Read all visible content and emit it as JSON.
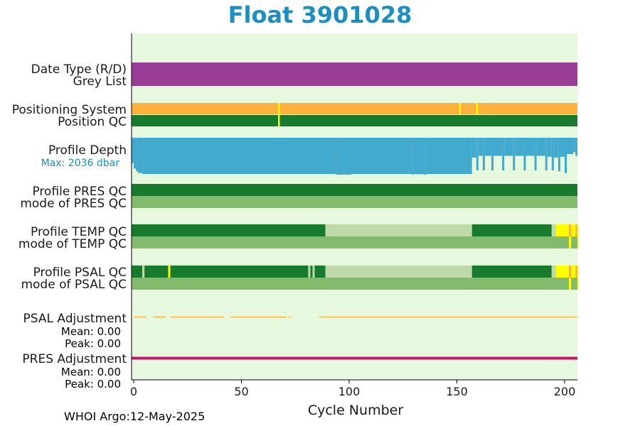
{
  "page": {
    "title": "Float 3901028",
    "footer": "WHOI Argo:12-May-2025"
  },
  "chart_data": {
    "type": "timeline",
    "xlabel": "Cycle Number",
    "xlim": [
      -1,
      207
    ],
    "xticks": [
      0,
      50,
      100,
      150,
      200
    ],
    "background_color": "#e6f9de",
    "rows": [
      {
        "label": "Date Type (R/D)",
        "segments": [
          [
            -1,
            207,
            "#993c96"
          ]
        ]
      },
      {
        "label": "Grey List",
        "segments": []
      },
      {
        "label": "Positioning System",
        "segments": [
          [
            -1,
            207,
            "#ffb13b"
          ],
          [
            67,
            67.8,
            "#ffff00"
          ],
          [
            151,
            151.8,
            "#ffff00"
          ],
          [
            159,
            159.8,
            "#ffff00"
          ]
        ]
      },
      {
        "label": "Position QC",
        "segments": [
          [
            -1,
            207,
            "#187a2c"
          ],
          [
            67,
            67.8,
            "#ffff00"
          ]
        ]
      },
      {
        "label": "Profile PRES QC",
        "segments": [
          [
            -1,
            207,
            "#187a2c"
          ]
        ]
      },
      {
        "label": "mode of PRES QC",
        "segments": [
          [
            -1,
            207,
            "#82bb6e"
          ]
        ]
      },
      {
        "label": "Profile TEMP QC",
        "segments": [
          [
            -1,
            89,
            "#187a2c"
          ],
          [
            89,
            157,
            "#bddaa8"
          ],
          [
            157,
            194,
            "#187a2c"
          ],
          [
            194,
            196,
            "#bddaa8"
          ],
          [
            196,
            202,
            "#ffff00"
          ],
          [
            202,
            203,
            "#ffb13b"
          ],
          [
            203,
            205,
            "#ffff00"
          ],
          [
            205,
            206,
            "#ffb13b"
          ],
          [
            206,
            207,
            "#ffff00"
          ]
        ]
      },
      {
        "label": "mode of TEMP QC",
        "segments": [
          [
            -1,
            202,
            "#82bb6e"
          ],
          [
            202,
            203,
            "#ffff00"
          ],
          [
            203,
            206,
            "#82bb6e"
          ],
          [
            206,
            207,
            "#ffff00"
          ]
        ]
      },
      {
        "label": "Profile PSAL QC",
        "segments": [
          [
            -1,
            4,
            "#187a2c"
          ],
          [
            4,
            5,
            "#bddaa8"
          ],
          [
            5,
            16,
            "#187a2c"
          ],
          [
            16,
            17,
            "#ffff00"
          ],
          [
            17,
            81,
            "#187a2c"
          ],
          [
            81,
            82,
            "#bddaa8"
          ],
          [
            82,
            83,
            "#187a2c"
          ],
          [
            83,
            84,
            "#bddaa8"
          ],
          [
            84,
            89,
            "#187a2c"
          ],
          [
            89,
            157,
            "#bddaa8"
          ],
          [
            157,
            194,
            "#187a2c"
          ],
          [
            194,
            196,
            "#bddaa8"
          ],
          [
            196,
            202,
            "#ffff00"
          ],
          [
            202,
            203,
            "#ffb13b"
          ],
          [
            203,
            205,
            "#ffff00"
          ],
          [
            205,
            206,
            "#ffb13b"
          ],
          [
            206,
            207,
            "#ffff00"
          ]
        ]
      },
      {
        "label": "mode of PSAL QC",
        "segments": [
          [
            -1,
            202,
            "#82bb6e"
          ],
          [
            202,
            203,
            "#ffff00"
          ],
          [
            203,
            206,
            "#82bb6e"
          ],
          [
            206,
            207,
            "#ffff00"
          ]
        ]
      }
    ],
    "profile_depth": {
      "label": "Profile Depth",
      "max_label": "Max: 2036 dbar",
      "color": "#42a9cf",
      "max_dbar": 2036,
      "segments": [
        [
          -1,
          0,
          1400
        ],
        [
          0,
          1,
          1700
        ],
        [
          1,
          2,
          1850
        ],
        [
          2,
          4,
          1950
        ],
        [
          4,
          94,
          2000
        ],
        [
          94,
          101,
          2036
        ],
        [
          101,
          129,
          2000
        ],
        [
          129,
          130,
          2030
        ],
        [
          130,
          135,
          2010
        ],
        [
          135,
          136,
          2036
        ],
        [
          136,
          157,
          2000
        ],
        [
          157,
          159,
          1100
        ],
        [
          159,
          160,
          1800
        ],
        [
          160,
          162,
          1000
        ],
        [
          162,
          163,
          1800
        ],
        [
          163,
          166,
          1000
        ],
        [
          166,
          167,
          1800
        ],
        [
          167,
          171,
          1000
        ],
        [
          171,
          172,
          1800
        ],
        [
          172,
          176,
          1000
        ],
        [
          176,
          177,
          1800
        ],
        [
          177,
          181,
          1000
        ],
        [
          181,
          182,
          1800
        ],
        [
          182,
          186,
          1000
        ],
        [
          186,
          187,
          1800
        ],
        [
          187,
          191,
          1000
        ],
        [
          191,
          192,
          1800
        ],
        [
          192,
          194,
          1050
        ],
        [
          194,
          195,
          1800
        ],
        [
          195,
          197,
          1100
        ],
        [
          197,
          198,
          1850
        ],
        [
          198,
          200,
          1050
        ],
        [
          200,
          201,
          1950
        ],
        [
          201,
          204,
          900
        ],
        [
          204,
          205,
          800
        ],
        [
          205,
          207,
          1000
        ]
      ]
    },
    "psal_adjustment": {
      "label": "PSAL Adjustment",
      "mean": "Mean: 0.00",
      "peak": "Peak: 0.00",
      "color": "#ffb13b",
      "segments": [
        [
          0,
          6
        ],
        [
          9,
          15
        ],
        [
          17,
          42
        ],
        [
          45,
          71
        ],
        [
          72,
          73
        ],
        [
          86,
          207
        ]
      ]
    },
    "pres_adjustment": {
      "label": "PRES Adjustment",
      "mean": "Mean: 0.00",
      "peak": "Peak: 0.00",
      "color": "#d4126e",
      "segments": [
        [
          -1,
          207
        ]
      ]
    }
  }
}
